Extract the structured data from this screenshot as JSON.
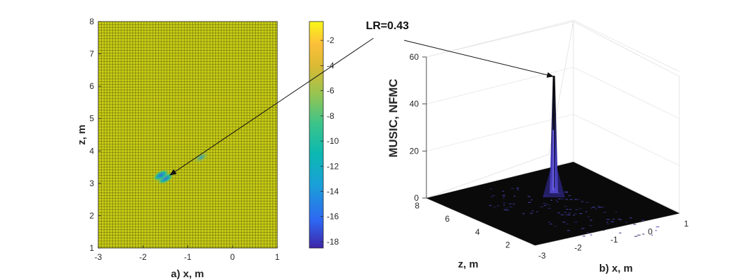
{
  "chart_data": [
    {
      "type": "heatmap",
      "xlabel": "a) x, m",
      "ylabel": "z, m",
      "xlim": [
        -3,
        1
      ],
      "ylim": [
        1,
        8
      ],
      "xticks": [
        "-3",
        "-2",
        "-1",
        "0",
        "1"
      ],
      "yticks": [
        "1",
        "2",
        "3",
        "4",
        "5",
        "6",
        "7",
        "8"
      ],
      "grid": true,
      "colorbar": {
        "ticks": [
          "-2",
          "-4",
          "-6",
          "-8",
          "-10",
          "-12",
          "-14",
          "-16",
          "-18"
        ],
        "range": [
          -18.5,
          -0.5
        ],
        "colormap": [
          "#3e26a8",
          "#2f67f2",
          "#1aa0d8",
          "#0cb9b0",
          "#3cc48a",
          "#97c451",
          "#d9ba33",
          "#fcbf3a",
          "#f9f718"
        ]
      },
      "background_color": "#c8cc14",
      "grid_color": "#3a3a10",
      "hotspots": [
        {
          "x": -1.5,
          "z": 3.15,
          "value": -11
        },
        {
          "x": -1.6,
          "z": 3.25,
          "value": -13
        },
        {
          "x": -0.7,
          "z": 3.8,
          "value": -8
        }
      ]
    },
    {
      "type": "surface3d",
      "xlabel": "b) x, m",
      "ylabel": "z, m",
      "zlabel": "MUSIC, NFMC",
      "xticks": [
        "-3",
        "-2",
        "-1",
        "0",
        "1"
      ],
      "yticks": [
        "2",
        "4",
        "6",
        "8"
      ],
      "zticks": [
        "0",
        "20",
        "40",
        "60"
      ],
      "zlim": [
        0,
        60
      ],
      "peak": {
        "x": -1.6,
        "z": 3.2,
        "value": 52
      },
      "surface_color": "#0a0a0a",
      "peak_color": "#3a32b0"
    }
  ],
  "annotation": {
    "text": "LR=0.43"
  }
}
